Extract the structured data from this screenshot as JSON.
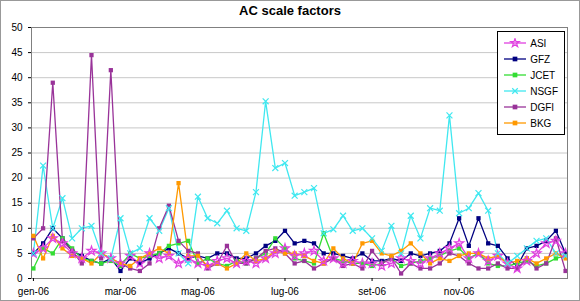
{
  "chart_data": {
    "type": "line",
    "title": "AC scale factors",
    "categories": [
      "gen-06",
      null,
      null,
      null,
      null,
      null,
      null,
      null,
      null,
      "mar-06",
      null,
      null,
      null,
      null,
      null,
      null,
      null,
      "mag-06",
      null,
      null,
      null,
      null,
      null,
      null,
      null,
      null,
      "lug-06",
      null,
      null,
      null,
      null,
      null,
      null,
      null,
      null,
      "set-06",
      null,
      null,
      null,
      null,
      null,
      null,
      null,
      null,
      "nov-06",
      null,
      null,
      null,
      null,
      null,
      null,
      null,
      null,
      null,
      null,
      null
    ],
    "ylim": [
      0,
      50
    ],
    "yticks": [
      0,
      5,
      10,
      15,
      20,
      25,
      30,
      35,
      40,
      45,
      50
    ],
    "grid": true,
    "legend": "top-right",
    "series": [
      {
        "name": "ASI",
        "color": "#e040e0",
        "marker": "star",
        "values": [
          5,
          6,
          8,
          7,
          5,
          4,
          5.5,
          5,
          4,
          3,
          4.5,
          3,
          5,
          4,
          4.5,
          3,
          4,
          3,
          2.5,
          3.5,
          4,
          3,
          3.5,
          3,
          4,
          5,
          6,
          4.5,
          5,
          5.5,
          3.5,
          4,
          3,
          3.5,
          3,
          3,
          2.5,
          3,
          4,
          3.5,
          3,
          4,
          5,
          6,
          7,
          4,
          5,
          3.5,
          4.5,
          3,
          2,
          3.5,
          5,
          7,
          7.5,
          5
        ]
      },
      {
        "name": "GFZ",
        "color": "#000080",
        "marker": "square",
        "values": [
          5,
          7,
          10,
          8,
          5.5,
          4.5,
          3.5,
          3,
          4,
          1.5,
          4,
          3,
          4,
          5,
          6,
          5,
          4,
          4.5,
          4,
          5,
          5,
          4,
          4,
          5,
          6.5,
          7.5,
          9.5,
          7,
          7.5,
          7,
          5,
          5,
          4.5,
          4,
          5,
          3.5,
          3.5,
          4,
          3.5,
          5,
          4.5,
          5,
          5.5,
          7,
          12,
          6.5,
          12,
          7,
          6.5,
          4,
          2.5,
          6,
          6.5,
          7.5,
          9.5,
          5
        ]
      },
      {
        "name": "JCET",
        "color": "#33dd33",
        "marker": "square",
        "values": [
          2,
          6,
          5,
          8,
          6,
          4,
          3.5,
          3,
          3.5,
          2.5,
          5,
          4,
          4.5,
          5,
          6.5,
          7,
          7.5,
          3,
          4,
          3,
          2.5,
          3.5,
          3,
          4,
          5,
          8,
          6,
          4,
          3.5,
          3,
          9,
          4,
          3.5,
          3,
          3,
          2.5,
          3,
          4,
          2.5,
          3,
          3.5,
          4,
          4.5,
          5.5,
          6,
          4,
          5,
          3,
          2.5,
          2.5,
          3,
          3.5,
          2.5,
          3,
          4,
          4.5
        ]
      },
      {
        "name": "NSGF",
        "color": "#40e8f0",
        "marker": "x",
        "values": [
          5,
          22.5,
          10,
          16,
          8,
          10,
          10.5,
          5,
          4,
          12,
          5,
          6,
          12,
          9.5,
          14,
          5,
          3,
          16.3,
          12,
          11,
          13.5,
          10,
          9.5,
          17.2,
          35.3,
          22,
          23,
          16.5,
          17.2,
          18,
          9,
          9.8,
          12.5,
          9.5,
          10,
          8,
          5.5,
          10.5,
          5,
          12.5,
          8,
          14,
          13.5,
          32.5,
          13,
          14,
          17,
          13.5,
          5,
          3,
          4.5,
          6,
          7.5,
          8,
          5,
          4.5
        ]
      },
      {
        "name": "DGFI",
        "color": "#993399",
        "marker": "square",
        "values": [
          8,
          10,
          39,
          7.5,
          5.5,
          3,
          44.5,
          4,
          41.5,
          3,
          2,
          1.5,
          3,
          10,
          14.5,
          7.5,
          5.5,
          5,
          2,
          3,
          6.5,
          3,
          3,
          4,
          5.5,
          6,
          5,
          3,
          3.5,
          2,
          3,
          4,
          2.5,
          3,
          2,
          5.5,
          3,
          4,
          1,
          3,
          2,
          2,
          3,
          5,
          4.5,
          3,
          2,
          2,
          3,
          2,
          2,
          4,
          2,
          3,
          8,
          1.5
        ]
      },
      {
        "name": "BKG",
        "color": "#ff9900",
        "marker": "square",
        "values": [
          8.5,
          4,
          8.5,
          6,
          4.5,
          4,
          3,
          5,
          4,
          3,
          2.5,
          4,
          5,
          6,
          5,
          19,
          4.5,
          4.5,
          2.5,
          3,
          2,
          3,
          5,
          3.5,
          4,
          5.5,
          5,
          5,
          4.5,
          3.5,
          3,
          6,
          4,
          3,
          7,
          7.5,
          5,
          4.5,
          5.5,
          7,
          5,
          3,
          4,
          3.5,
          4.5,
          5,
          5,
          4,
          4.5,
          3,
          3.5,
          4,
          3,
          4,
          5,
          4
        ]
      }
    ]
  }
}
